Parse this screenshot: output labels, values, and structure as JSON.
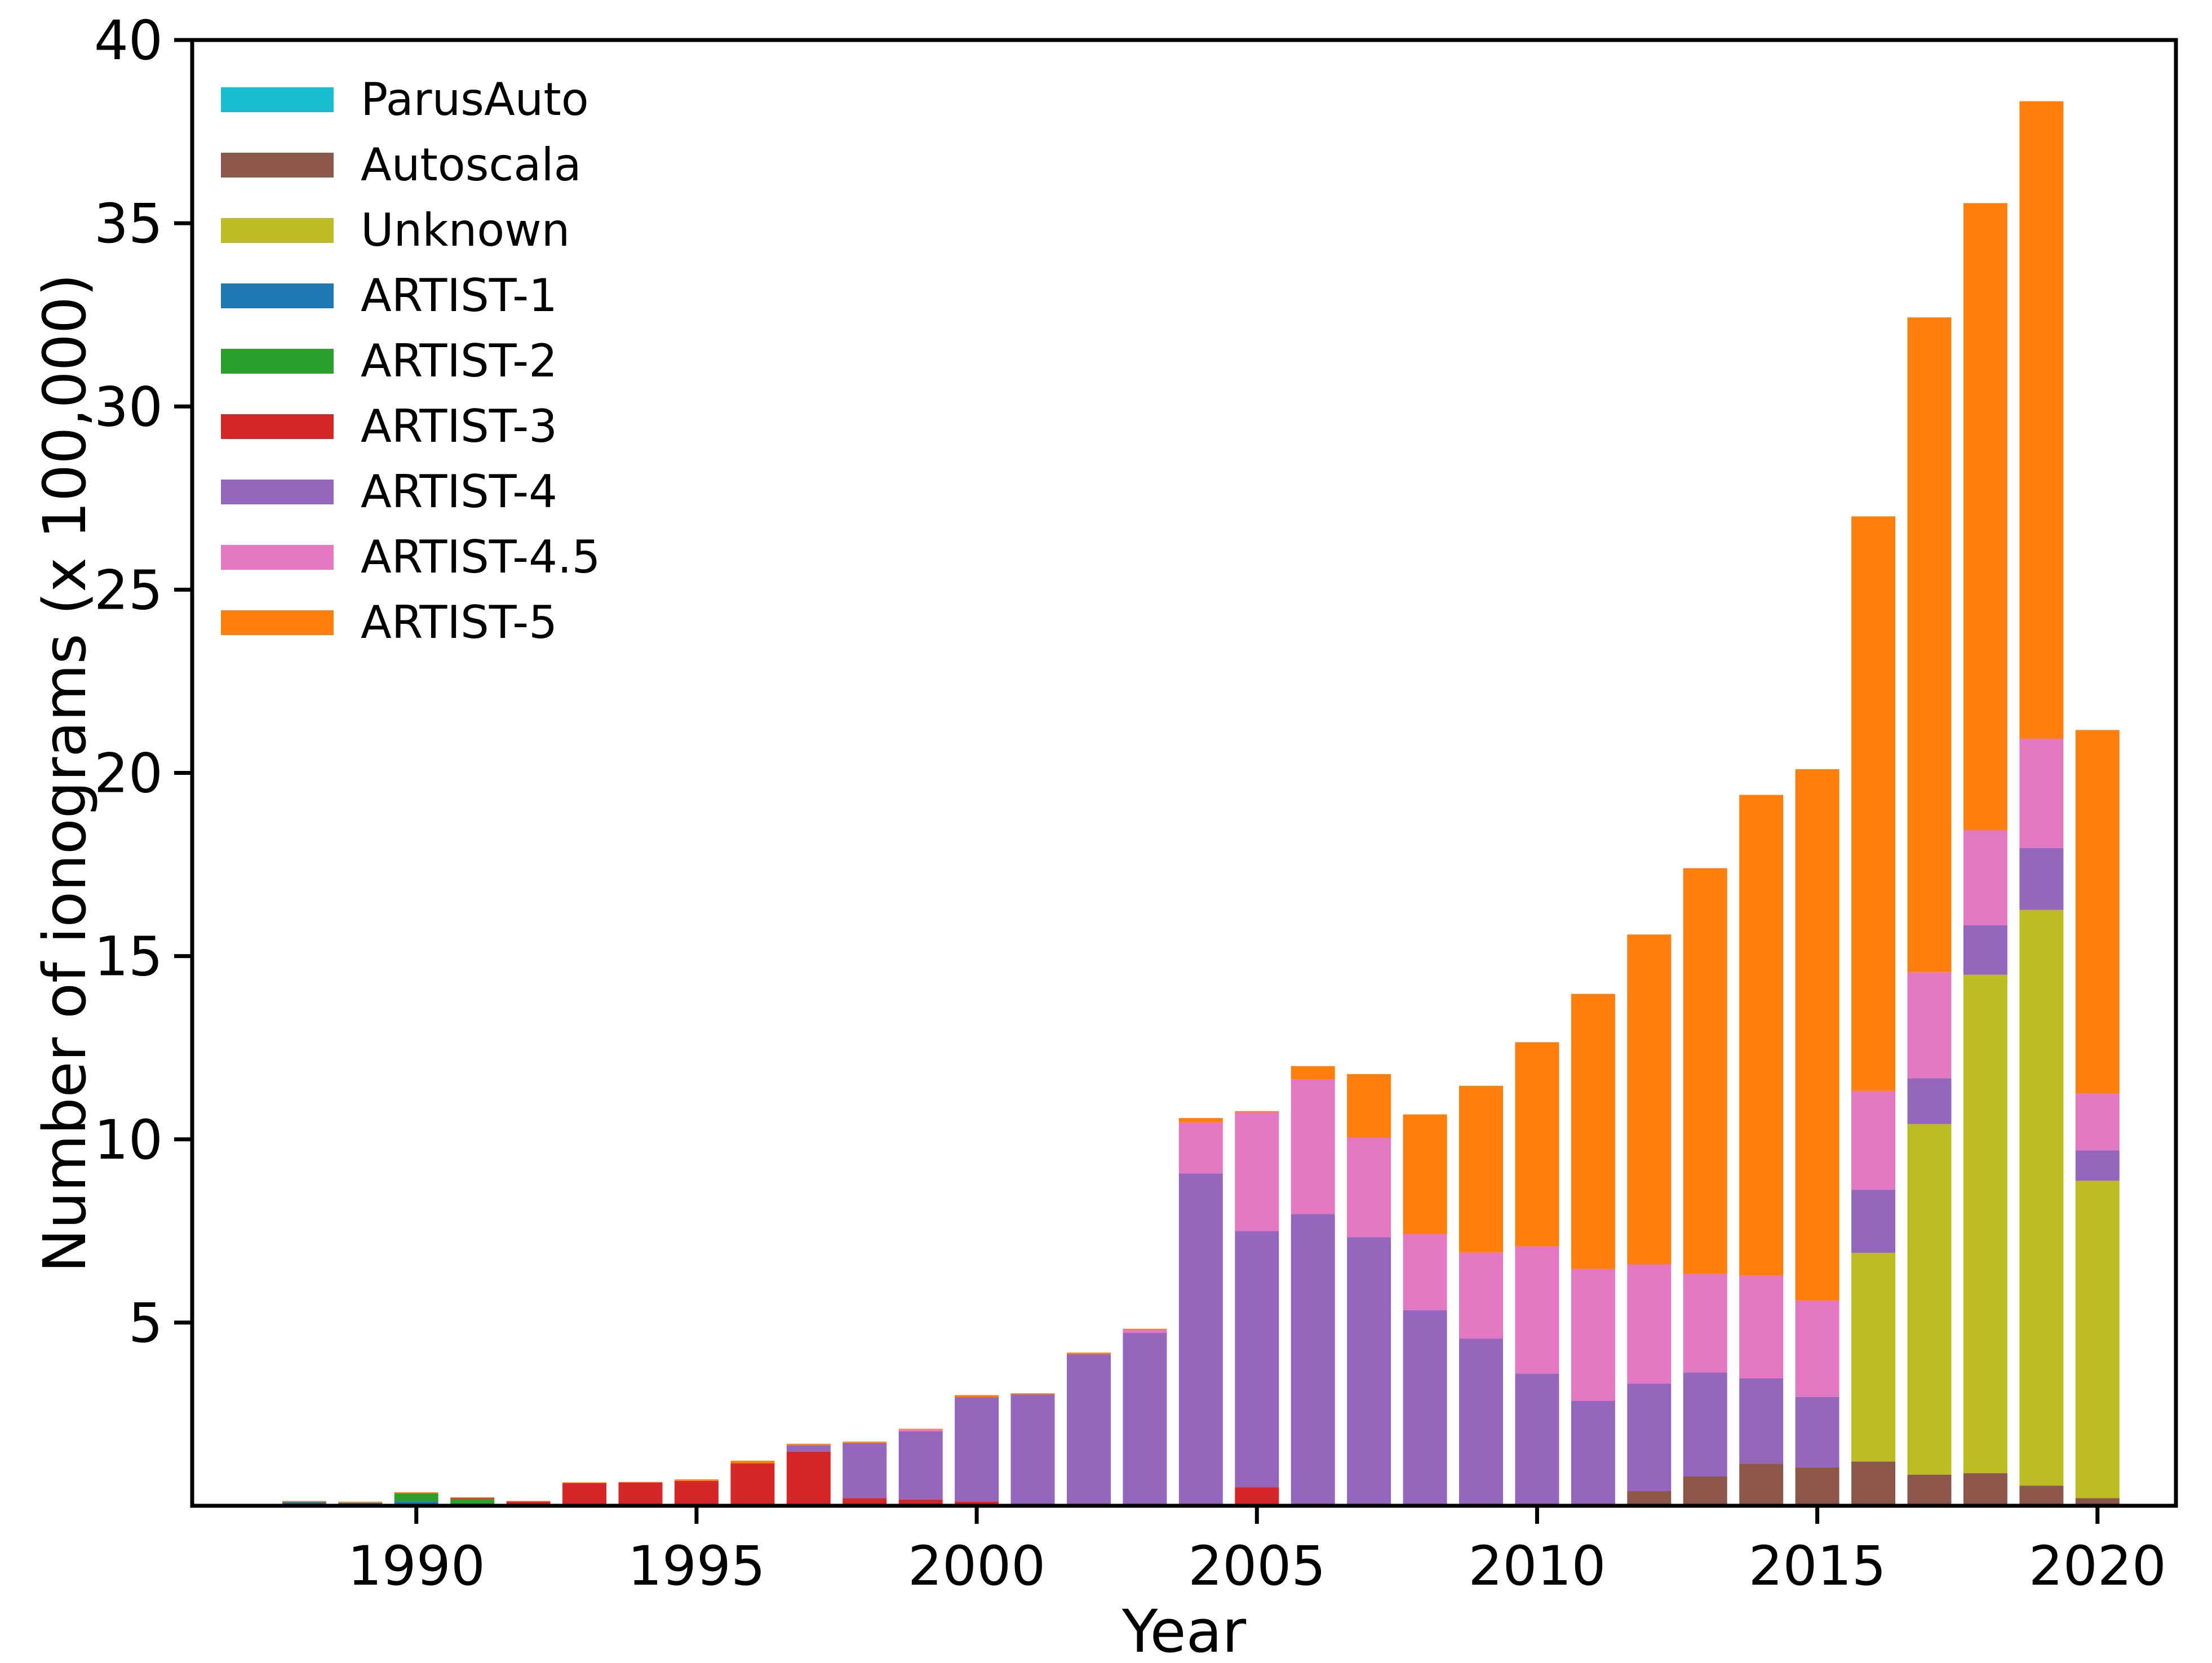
{
  "figure": {
    "background": "#ffffff",
    "axis_color": "#000000"
  },
  "chart_data": {
    "type": "bar",
    "stacked": true,
    "title": "",
    "xlabel": "Year",
    "ylabel": "Number of ionograms (x 100,000)",
    "ylim": [
      0,
      40
    ],
    "xlim": [
      1986.0,
      2021.4
    ],
    "grid": false,
    "legend_position": "upper-left",
    "xticks": [
      1990,
      1995,
      2000,
      2005,
      2010,
      2015,
      2020
    ],
    "yticks": [
      5,
      10,
      15,
      20,
      25,
      30,
      35,
      40
    ],
    "categories": [
      1988,
      1989,
      1990,
      1991,
      1992,
      1993,
      1994,
      1995,
      1996,
      1997,
      1998,
      1999,
      2000,
      2001,
      2002,
      2003,
      2004,
      2005,
      2006,
      2007,
      2008,
      2009,
      2010,
      2011,
      2012,
      2013,
      2014,
      2015,
      2016,
      2017,
      2018,
      2019,
      2020
    ],
    "stack_order": [
      "Autoscala",
      "Unknown",
      "ARTIST-1",
      "ARTIST-2",
      "ARTIST-3",
      "ARTIST-4",
      "ARTIST-4.5",
      "ARTIST-5"
    ],
    "series": [
      {
        "name": "ParusAuto",
        "color": "#17becf",
        "values": [
          0,
          0,
          0,
          0,
          0,
          0,
          0,
          0,
          0,
          0,
          0,
          0,
          0,
          0,
          0,
          0,
          0,
          0,
          0,
          0,
          0,
          0,
          0,
          0,
          0,
          0,
          0,
          0,
          0,
          0,
          0,
          0,
          0
        ]
      },
      {
        "name": "Autoscala",
        "color": "#8c564b",
        "values": [
          0,
          0,
          0,
          0,
          0,
          0,
          0,
          0,
          0,
          0,
          0,
          0,
          0,
          0,
          0,
          0,
          0,
          0,
          0,
          0,
          0,
          0,
          0,
          0,
          0.4,
          0.8,
          1.15,
          1.05,
          1.21,
          0.85,
          0.89,
          0.55,
          0.21
        ]
      },
      {
        "name": "Unknown",
        "color": "#bcbd22",
        "values": [
          0,
          0,
          0,
          0,
          0,
          0,
          0,
          0,
          0,
          0,
          0,
          0,
          0,
          0,
          0,
          0,
          0,
          0,
          0,
          0,
          0,
          0,
          0,
          0,
          0,
          0,
          0,
          0,
          5.69,
          9.57,
          13.6,
          15.71,
          8.66
        ]
      },
      {
        "name": "ARTIST-1",
        "color": "#1f77b4",
        "values": [
          0.1,
          0.08,
          0.12,
          0,
          0,
          0,
          0,
          0,
          0,
          0,
          0,
          0,
          0,
          0,
          0,
          0,
          0,
          0,
          0,
          0,
          0,
          0,
          0,
          0,
          0,
          0,
          0,
          0,
          0,
          0,
          0,
          0,
          0
        ]
      },
      {
        "name": "ARTIST-2",
        "color": "#2ca02c",
        "values": [
          0,
          0,
          0.22,
          0.18,
          0,
          0,
          0,
          0,
          0,
          0,
          0,
          0,
          0,
          0,
          0,
          0,
          0,
          0,
          0,
          0,
          0,
          0,
          0,
          0,
          0,
          0,
          0,
          0,
          0,
          0,
          0,
          0,
          0
        ]
      },
      {
        "name": "ARTIST-3",
        "color": "#d62728",
        "values": [
          0,
          0,
          0,
          0.03,
          0.12,
          0.62,
          0.63,
          0.68,
          1.16,
          1.48,
          0.21,
          0.17,
          0.12,
          0,
          0,
          0,
          0,
          0.5,
          0,
          0,
          0,
          0,
          0,
          0,
          0,
          0,
          0,
          0,
          0,
          0,
          0,
          0,
          0
        ]
      },
      {
        "name": "ARTIST-4",
        "color": "#9467bd",
        "values": [
          0,
          0,
          0,
          0,
          0,
          0,
          0,
          0,
          0,
          0.17,
          1.5,
          1.86,
          2.84,
          3.04,
          4.14,
          4.72,
          9.07,
          7.0,
          7.96,
          7.33,
          5.34,
          4.56,
          3.61,
          2.86,
          2.93,
          2.84,
          2.33,
          1.92,
          1.72,
          1.25,
          1.35,
          1.69,
          0.83
        ]
      },
      {
        "name": "ARTIST-4.5",
        "color": "#e377c2",
        "values": [
          0,
          0,
          0,
          0,
          0,
          0,
          0,
          0,
          0,
          0,
          0,
          0.05,
          0,
          0,
          0,
          0.08,
          1.39,
          3.24,
          3.67,
          2.72,
          2.08,
          2.35,
          3.47,
          3.6,
          3.26,
          2.69,
          2.8,
          2.63,
          2.7,
          2.89,
          2.6,
          2.98,
          1.55
        ]
      },
      {
        "name": "ARTIST-5",
        "color": "#ff7f0e",
        "values": [
          0.03,
          0.03,
          0.03,
          0.02,
          0.01,
          0.02,
          0.02,
          0.04,
          0.07,
          0.04,
          0.04,
          0.02,
          0.06,
          0.03,
          0.04,
          0.03,
          0.12,
          0.03,
          0.37,
          1.73,
          3.26,
          4.55,
          5.57,
          7.51,
          9.0,
          11.07,
          13.12,
          14.5,
          15.68,
          17.87,
          17.11,
          17.4,
          9.92
        ]
      }
    ]
  }
}
